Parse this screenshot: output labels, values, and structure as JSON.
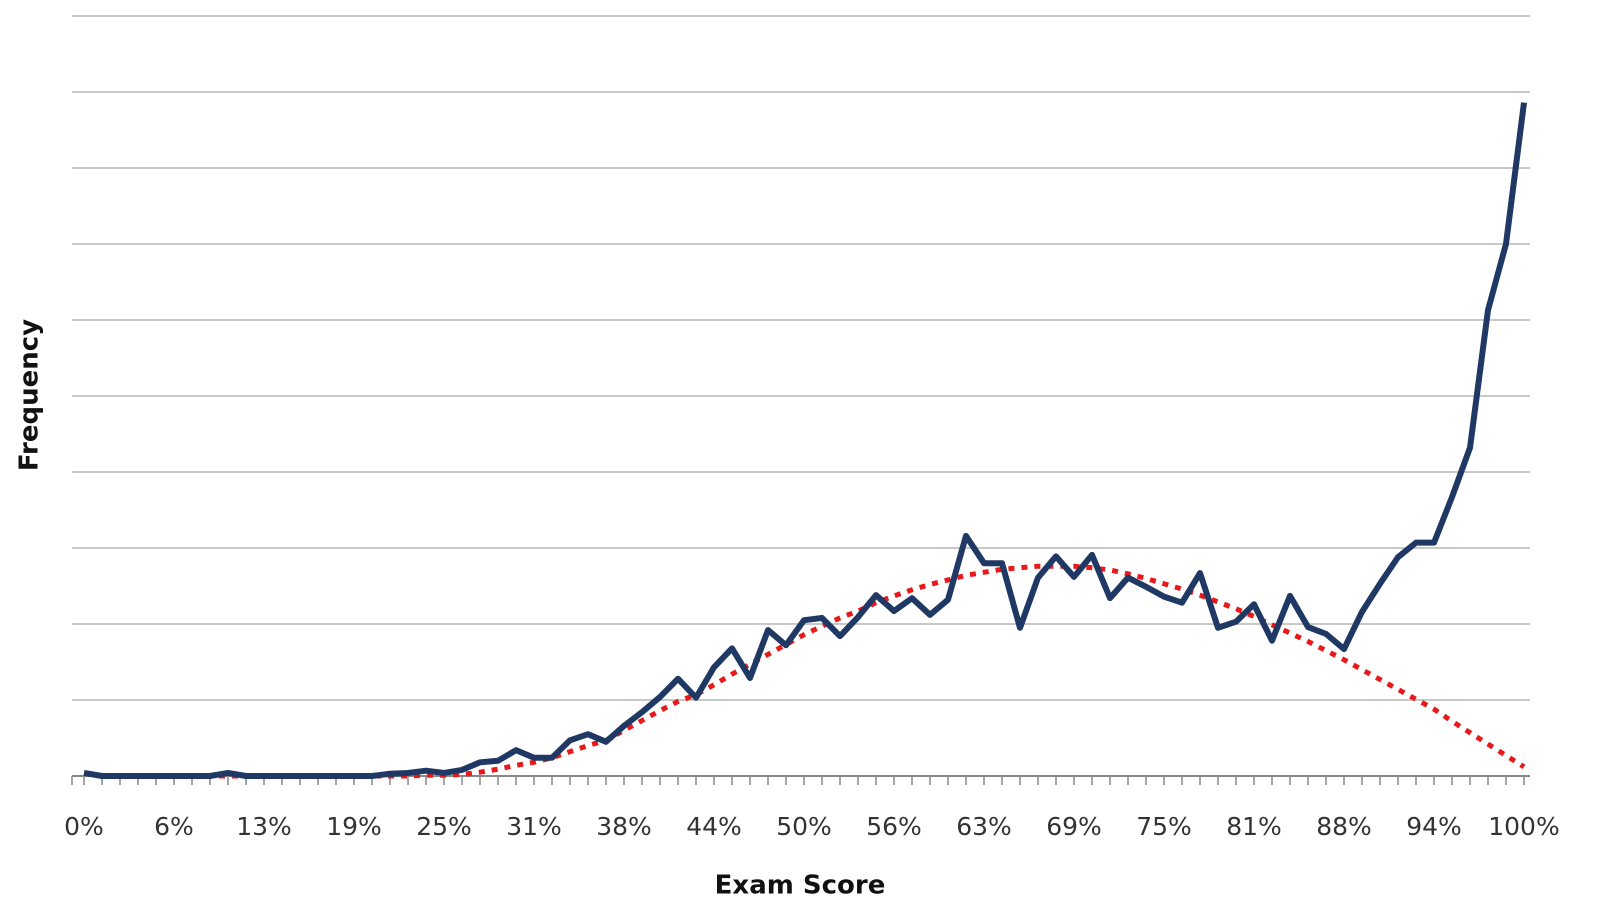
{
  "chart_data": {
    "type": "line",
    "xlabel": "Exam Score",
    "ylabel": "Frequency",
    "categories": [
      "0%",
      null,
      null,
      null,
      null,
      "6%",
      null,
      null,
      null,
      null,
      "13%",
      null,
      null,
      null,
      null,
      "19%",
      null,
      null,
      null,
      null,
      "25%",
      null,
      null,
      null,
      null,
      "31%",
      null,
      null,
      null,
      null,
      "38%",
      null,
      null,
      null,
      null,
      "44%",
      null,
      null,
      null,
      null,
      "50%",
      null,
      null,
      null,
      null,
      "56%",
      null,
      null,
      null,
      null,
      "63%",
      null,
      null,
      null,
      null,
      "69%",
      null,
      null,
      null,
      null,
      "75%",
      null,
      null,
      null,
      null,
      "81%",
      null,
      null,
      null,
      null,
      "88%",
      null,
      null,
      null,
      null,
      "94%",
      null,
      null,
      null,
      null,
      "100%"
    ],
    "series": [
      {
        "color": "#1f3864",
        "line_style": "solid",
        "values": [
          0.04,
          0,
          0,
          0,
          0,
          0,
          0,
          0,
          0.04,
          0,
          0,
          0,
          0,
          0,
          0,
          0,
          0,
          0.03,
          0.04,
          0.07,
          0.04,
          0.08,
          0.18,
          0.2,
          0.34,
          0.24,
          0.24,
          0.47,
          0.55,
          0.45,
          0.66,
          0.84,
          1.04,
          1.28,
          1.03,
          1.43,
          1.68,
          1.29,
          1.92,
          1.72,
          2.05,
          2.08,
          1.84,
          2.09,
          2.38,
          2.17,
          2.34,
          2.12,
          2.32,
          3.16,
          2.8,
          2.8,
          1.95,
          2.61,
          2.89,
          2.62,
          2.91,
          2.34,
          2.61,
          2.49,
          2.36,
          2.28,
          2.67,
          1.95,
          2.03,
          2.26,
          1.78,
          2.37,
          1.96,
          1.87,
          1.67,
          2.16,
          2.53,
          2.88,
          3.07,
          3.07,
          3.67,
          4.32,
          6.13,
          7.0,
          8.86
        ]
      },
      {
        "color": "#e8191b",
        "line_style": "dotted",
        "values": [
          null,
          0,
          0,
          0,
          0,
          0,
          0,
          0,
          0,
          0,
          0,
          0,
          0,
          0,
          0,
          0,
          0,
          0,
          0,
          0.01,
          0.01,
          0.02,
          0.05,
          0.09,
          0.14,
          0.18,
          0.24,
          0.32,
          0.4,
          0.47,
          0.6,
          0.73,
          0.86,
          0.98,
          1.07,
          1.2,
          1.34,
          1.47,
          1.6,
          1.73,
          1.86,
          1.97,
          2.08,
          2.17,
          2.28,
          2.37,
          2.45,
          2.52,
          2.58,
          2.64,
          2.68,
          2.72,
          2.74,
          2.76,
          2.76,
          2.76,
          2.74,
          2.71,
          2.66,
          2.6,
          2.53,
          2.46,
          2.38,
          2.29,
          2.2,
          2.1,
          1.99,
          1.88,
          1.77,
          1.65,
          1.53,
          1.4,
          1.27,
          1.14,
          1.01,
          0.88,
          0.72,
          0.57,
          0.42,
          0.27,
          0.12
        ]
      }
    ],
    "ylim": [
      0,
      10
    ],
    "yticks": [
      0,
      1,
      2,
      3,
      4,
      5,
      6,
      7,
      8,
      9,
      10
    ],
    "grid": true
  }
}
